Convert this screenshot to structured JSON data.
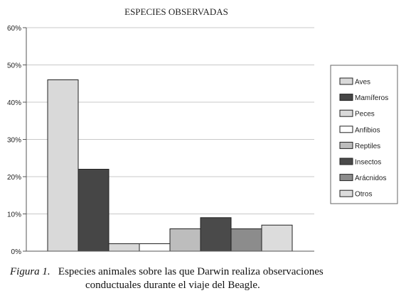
{
  "chart_data": {
    "type": "bar",
    "title": "ESPECIES OBSERVADAS",
    "categories": [
      "Aves",
      "Mamíferos",
      "Peces",
      "Anfibios",
      "Reptiles",
      "Insectos",
      "Arácnidos",
      "Otros"
    ],
    "values": [
      46,
      22,
      2,
      2,
      6,
      9,
      6,
      7
    ],
    "unit": "%",
    "ylim": [
      0,
      60
    ],
    "yticks": [
      "0%",
      "10%",
      "20%",
      "30%",
      "40%",
      "50%",
      "60%"
    ],
    "ytick_values": [
      0,
      10,
      20,
      30,
      40,
      50,
      60
    ],
    "grid": true,
    "legend_position": "right",
    "colors": [
      "#d9d9d9",
      "#464646",
      "#d9d9d9",
      "#ffffff",
      "#bdbdbd",
      "#4a4a4a",
      "#8c8c8c",
      "#dcdcdc"
    ]
  },
  "caption": {
    "figure_label": "Figura 1.",
    "line1": "Especies animales sobre las que Darwin realiza observaciones",
    "line2": "conductuales durante el viaje del Beagle."
  }
}
